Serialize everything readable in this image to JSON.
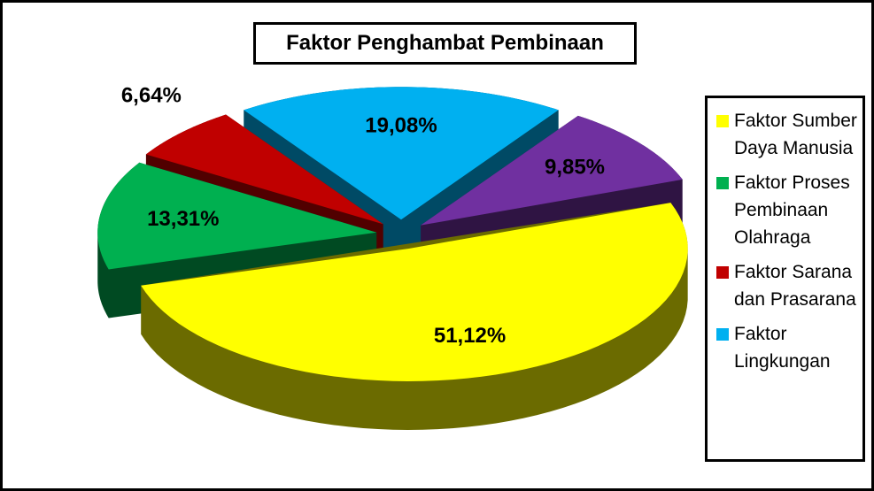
{
  "chart_data": {
    "type": "pie3d",
    "title": "Faktor Penghambat Pembinaan",
    "categories": [
      "Faktor Sumber Daya Manusia",
      "Faktor Proses Pembinaan Olahraga",
      "Faktor Sarana dan Prasarana",
      "Faktor Lingkungan",
      null
    ],
    "values": [
      51.12,
      13.31,
      6.64,
      19.08,
      9.85
    ],
    "value_labels": [
      "51,12%",
      "13,31%",
      "6,64%",
      "19,08%",
      "9,85%"
    ],
    "colors": [
      "#ffff00",
      "#00b050",
      "#c00000",
      "#00b0f0",
      "#7030a0"
    ],
    "legend": "right"
  }
}
